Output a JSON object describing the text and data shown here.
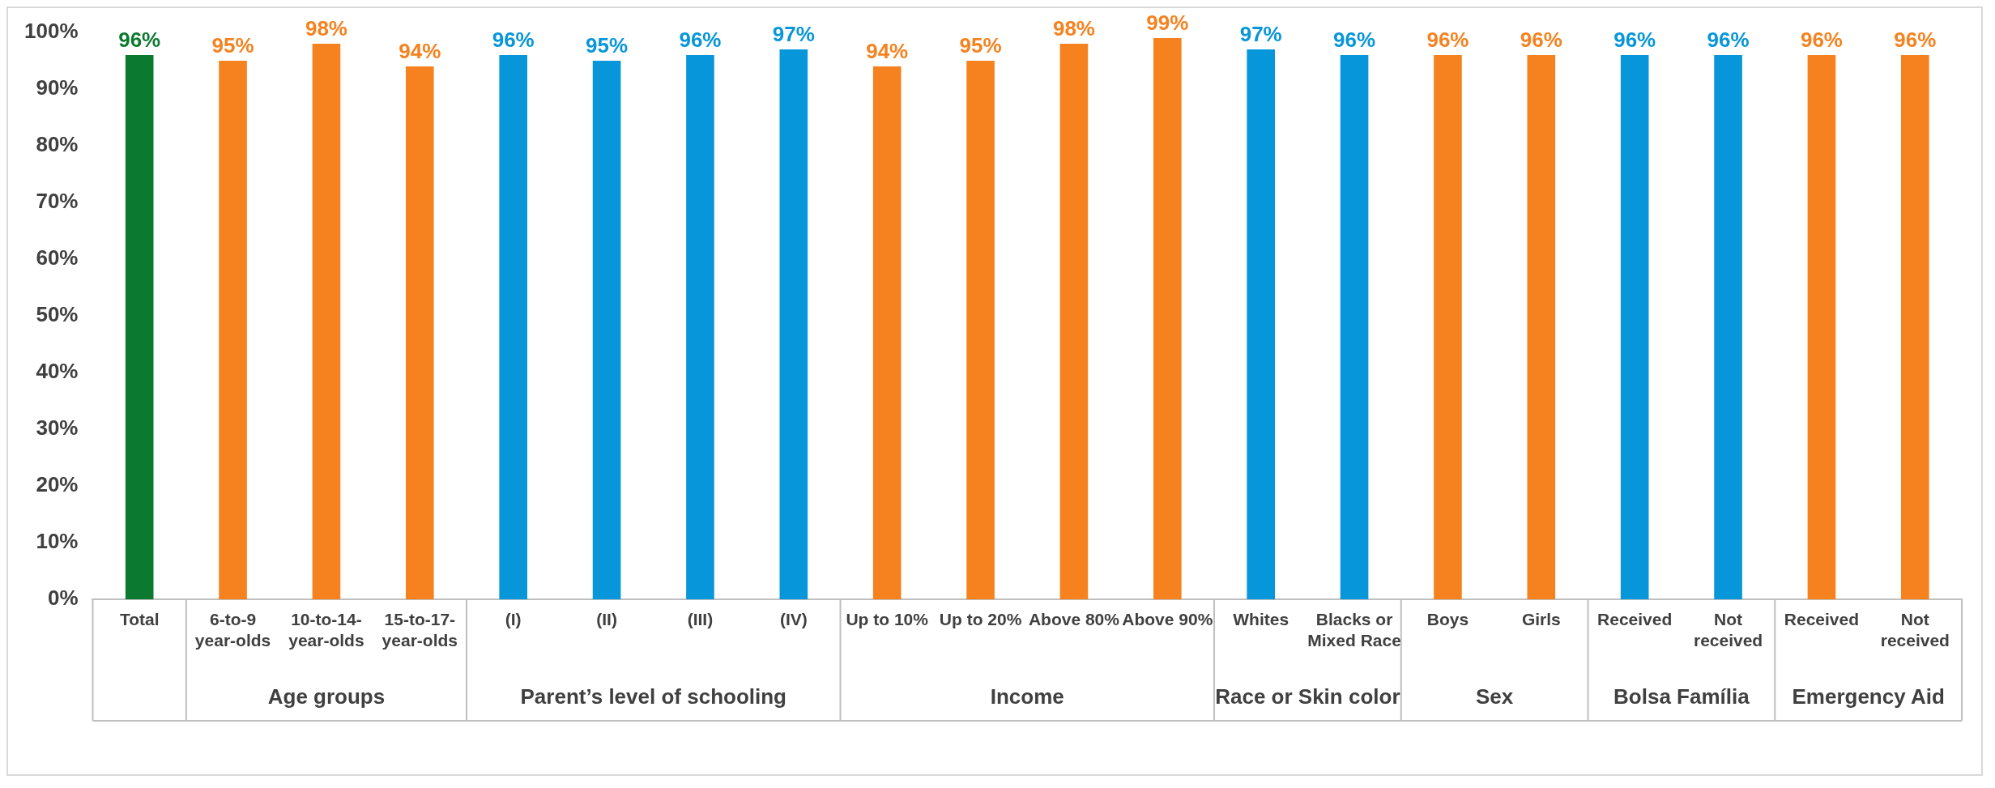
{
  "chart_data": {
    "type": "bar",
    "categories": [
      "Total",
      "6-to-9 year-olds",
      "10-to-14-year-olds",
      "15-to-17-year-olds",
      "(I)",
      "(II)",
      "(III)",
      "(IV)",
      "Up to 10%",
      "Up to 20%",
      "Above 80%",
      "Above 90%",
      "Whites",
      "Blacks or Mixed Race",
      "Boys",
      "Girls",
      "Received",
      "Not received",
      "Received",
      "Not received"
    ],
    "values": [
      96,
      95,
      98,
      94,
      96,
      95,
      96,
      97,
      94,
      95,
      98,
      99,
      97,
      96,
      96,
      96,
      96,
      96,
      96,
      96
    ],
    "colors": [
      "#0b7a30",
      "#f5821f",
      "#f5821f",
      "#f5821f",
      "#0796d9",
      "#0796d9",
      "#0796d9",
      "#0796d9",
      "#f5821f",
      "#f5821f",
      "#f5821f",
      "#f5821f",
      "#0796d9",
      "#0796d9",
      "#f5821f",
      "#f5821f",
      "#0796d9",
      "#0796d9",
      "#f5821f",
      "#f5821f"
    ],
    "value_labels": [
      "96%",
      "95%",
      "98%",
      "94%",
      "96%",
      "95%",
      "96%",
      "97%",
      "94%",
      "95%",
      "98%",
      "99%",
      "97%",
      "96%",
      "96%",
      "96%",
      "96%",
      "96%",
      "96%",
      "96%"
    ],
    "ylim": [
      0,
      100
    ],
    "yticks": [
      {
        "value": 0,
        "label": "0%"
      },
      {
        "value": 10,
        "label": "10%"
      },
      {
        "value": 20,
        "label": "20%"
      },
      {
        "value": 30,
        "label": "30%"
      },
      {
        "value": 40,
        "label": "40%"
      },
      {
        "value": 50,
        "label": "50%"
      },
      {
        "value": 60,
        "label": "60%"
      },
      {
        "value": 70,
        "label": "70%"
      },
      {
        "value": 80,
        "label": "80%"
      },
      {
        "value": 90,
        "label": "90%"
      },
      {
        "value": 100,
        "label": "100%"
      }
    ],
    "annotations": [
      "Age groups",
      "Parent’s level of schooling",
      "Income",
      "Race or Skin color",
      "Sex",
      "Bolsa Família",
      "Emergency Aid"
    ],
    "grid": false,
    "legend": false
  }
}
